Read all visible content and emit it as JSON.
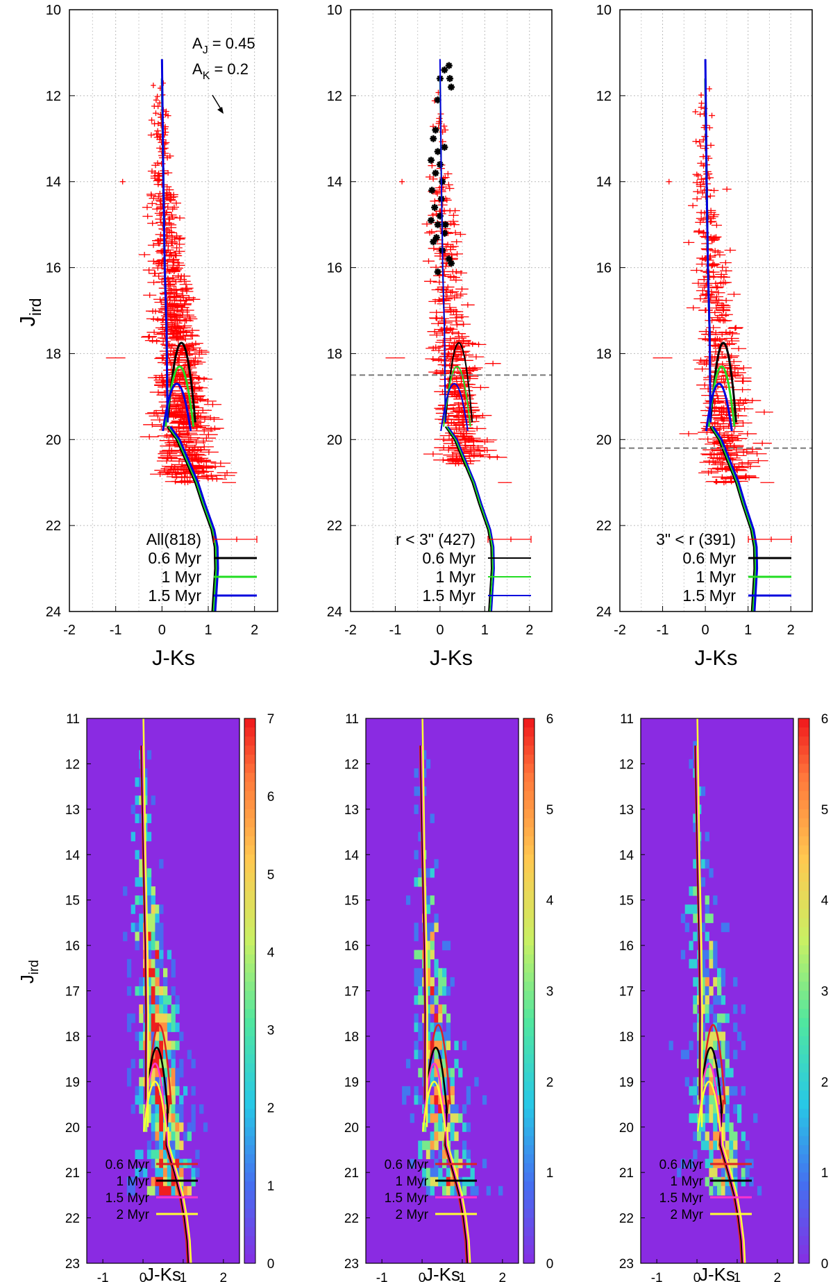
{
  "chart_data": [
    {
      "type": "scatter",
      "panel": "top-left",
      "title": "",
      "xlabel": "J-Ks",
      "ylabel": "J_ird",
      "xlim": [
        -2,
        2.5
      ],
      "ylim": [
        24,
        10
      ],
      "xticks": [
        "-2",
        "-1",
        "0",
        "1",
        "2"
      ],
      "yticks": [
        "10",
        "12",
        "14",
        "16",
        "18",
        "20",
        "22",
        "24"
      ],
      "grid": true,
      "annotation": {
        "aj_label": "A",
        "aj_sub": "J",
        "aj_value": " = 0.45",
        "ak_label": "A",
        "ak_sub": "K",
        "ak_value": " = 0.2"
      },
      "legend_position": "bottom-right",
      "legend": [
        "All(818)",
        "0.6 Myr",
        "1 Myr",
        "1.5 Myr"
      ],
      "limit_line": null
    },
    {
      "type": "scatter",
      "panel": "top-middle",
      "title": "",
      "xlabel": "J-Ks",
      "ylabel": "",
      "xlim": [
        -2,
        2.5
      ],
      "ylim": [
        24,
        10
      ],
      "xticks": [
        "-2",
        "-1",
        "0",
        "1",
        "2"
      ],
      "yticks": [
        "10",
        "12",
        "14",
        "16",
        "18",
        "20",
        "22",
        "24"
      ],
      "grid": true,
      "legend_position": "bottom-right",
      "legend": [
        "r < 3\" (427)",
        "0.6 Myr",
        "1 Myr",
        "1.5 Myr"
      ],
      "limit_line": 18.5
    },
    {
      "type": "scatter",
      "panel": "top-right",
      "title": "",
      "xlabel": "J-Ks",
      "ylabel": "",
      "xlim": [
        -2,
        2.5
      ],
      "ylim": [
        24,
        10
      ],
      "xticks": [
        "-2",
        "-1",
        "0",
        "1",
        "2"
      ],
      "yticks": [
        "10",
        "12",
        "14",
        "16",
        "18",
        "20",
        "22",
        "24"
      ],
      "grid": true,
      "legend_position": "bottom-right",
      "legend": [
        "3\" < r (391)",
        "0.6 Myr",
        "1 Myr",
        "1.5 Myr"
      ],
      "limit_line": 20.2
    },
    {
      "type": "heatmap",
      "panel": "bottom-left",
      "xlabel": "J-Ks",
      "ylabel": "J_ird",
      "xlim": [
        -1.4,
        2.4
      ],
      "ylim": [
        23,
        11
      ],
      "xticks": [
        "-1",
        "0",
        "1",
        "2"
      ],
      "yticks": [
        "11",
        "12",
        "13",
        "14",
        "15",
        "16",
        "17",
        "18",
        "19",
        "20",
        "21",
        "22",
        "23"
      ],
      "colorbar_range": [
        0,
        7
      ],
      "colorbar_ticks": [
        "0",
        "1",
        "2",
        "3",
        "4",
        "5",
        "6",
        "7"
      ],
      "legend": [
        "0.6 Myr",
        "1 Myr",
        "1.5 Myr",
        "2 Myr"
      ]
    },
    {
      "type": "heatmap",
      "panel": "bottom-middle",
      "xlabel": "J-Ks",
      "ylabel": "",
      "xlim": [
        -1.4,
        2.4
      ],
      "ylim": [
        23,
        11
      ],
      "xticks": [
        "-1",
        "0",
        "1",
        "2"
      ],
      "yticks": [
        "11",
        "12",
        "13",
        "14",
        "15",
        "16",
        "17",
        "18",
        "19",
        "20",
        "21",
        "22",
        "23"
      ],
      "colorbar_range": [
        0,
        6
      ],
      "colorbar_ticks": [
        "0",
        "1",
        "2",
        "3",
        "4",
        "5",
        "6"
      ],
      "legend": [
        "0.6 Myr",
        "1 Myr",
        "1.5 Myr",
        "2 Myr"
      ]
    },
    {
      "type": "heatmap",
      "panel": "bottom-right",
      "xlabel": "J-Ks",
      "ylabel": "",
      "xlim": [
        -1.4,
        2.4
      ],
      "ylim": [
        23,
        11
      ],
      "xticks": [
        "-1",
        "0",
        "1",
        "2"
      ],
      "yticks": [
        "11",
        "12",
        "13",
        "14",
        "15",
        "16",
        "17",
        "18",
        "19",
        "20",
        "21",
        "22",
        "23"
      ],
      "colorbar_range": [
        0,
        6
      ],
      "colorbar_ticks": [
        "0",
        "1",
        "2",
        "3",
        "4",
        "5",
        "6"
      ],
      "legend": [
        "0.6 Myr",
        "1 Myr",
        "1.5 Myr",
        "2 Myr"
      ]
    }
  ],
  "ylabel_main": "J",
  "ylabel_sub": "ird",
  "colors": {
    "points": "#ff0000",
    "iso_06_top": "#000000",
    "iso_1_top": "#22dd22",
    "iso_15_top": "#0000dd",
    "iso_06_bot": "#dd2222",
    "iso_1_bot": "#000000",
    "iso_15_bot": "#ff33cc",
    "iso_2_bot": "#ffff33",
    "heat_bg": "#8a2be2"
  }
}
